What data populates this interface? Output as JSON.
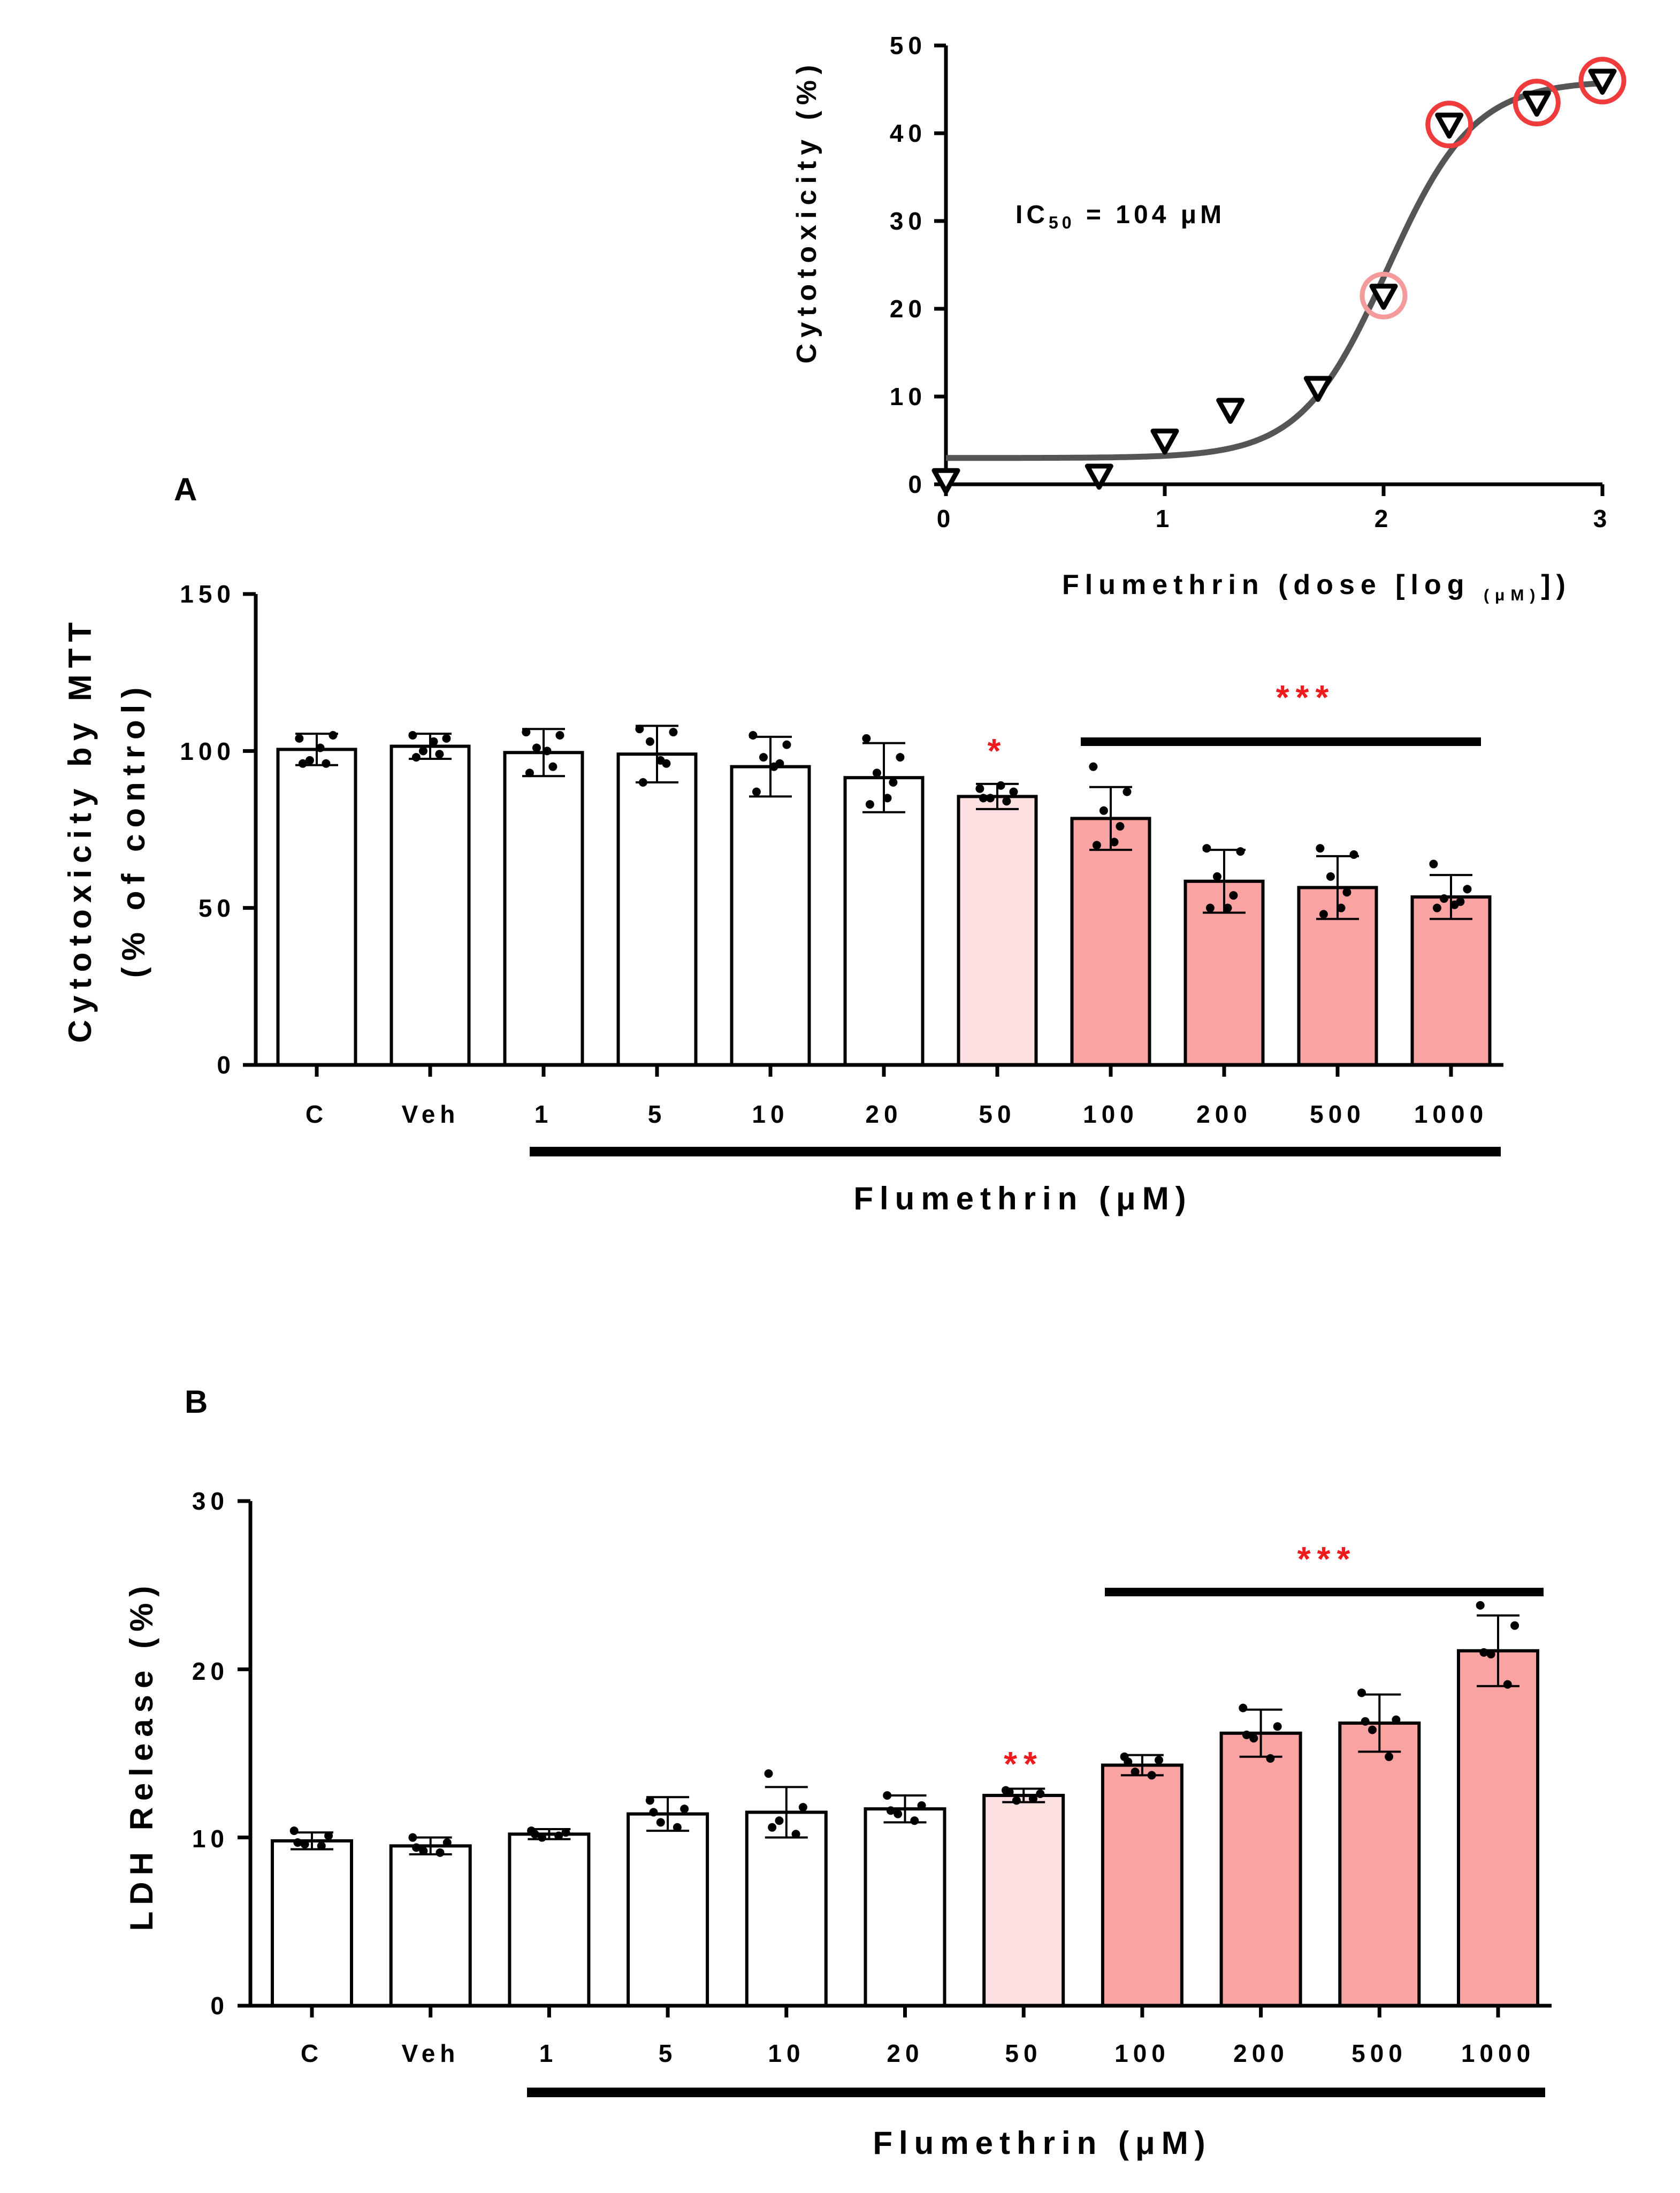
{
  "colors": {
    "ink": "#000000",
    "bar_white": "#ffffff",
    "bar_light": "#fde0e0",
    "bar_pink": "#f9a3a3",
    "highlight_circle": "#ef3b3b",
    "highlight_circle_faint": "#f49a9a",
    "curve": "#555555",
    "significance": "#ee1c1c"
  },
  "chart_data": [
    {
      "id": "inset",
      "type": "scatter",
      "ylabel": "Cytotoxicity (%)",
      "xlabel_prefix": "Flumethrin (dose [log ",
      "xlabel_sub": "(μM)",
      "xlabel_suffix": "])",
      "x_ticks": [
        "0",
        "1",
        "2",
        "3"
      ],
      "y_ticks": [
        "0",
        "10",
        "20",
        "30",
        "40",
        "50"
      ],
      "xlim": [
        0,
        3
      ],
      "ylim": [
        0,
        50
      ],
      "annotation_prefix": "IC",
      "annotation_sub": "50",
      "annotation_suffix": " = 104 μM",
      "x": [
        0,
        0.7,
        1,
        1.3,
        1.7,
        2,
        2.3,
        2.7,
        3
      ],
      "y": [
        0.5,
        1,
        5,
        8.5,
        11,
        21.5,
        41,
        43.5,
        46
      ],
      "highlighted_x": [
        2,
        2.3,
        2.7,
        3
      ],
      "fit": {
        "bottom": 3,
        "top": 46,
        "log_ic50": 2.017,
        "hill": 2.2
      }
    },
    {
      "id": "A",
      "type": "bar",
      "panel_label": "A",
      "ylabel_line1": "Cytotoxicity by MTT",
      "ylabel_line2": "(% of control)",
      "xlabel": "Flumethrin (μM)",
      "categories": [
        "C",
        "Veh",
        "1",
        "5",
        "10",
        "20",
        "50",
        "100",
        "200",
        "500",
        "1000"
      ],
      "values": [
        100.5,
        101.5,
        99.5,
        99,
        95,
        91.5,
        85.5,
        78.5,
        58.5,
        56.5,
        53.5
      ],
      "errors": [
        5,
        4,
        7.5,
        9,
        9.5,
        11,
        4,
        10,
        10,
        10,
        7
      ],
      "points": [
        [
          104,
          105,
          97,
          96,
          96,
          101
        ],
        [
          105,
          104,
          100,
          99,
          98,
          103
        ],
        [
          106,
          105,
          101,
          95,
          93,
          100
        ],
        [
          107,
          106,
          103,
          96,
          90,
          97
        ],
        [
          105,
          102,
          98,
          96,
          87,
          95
        ],
        [
          104,
          98,
          93,
          90,
          83,
          85
        ],
        [
          88,
          87,
          85,
          84,
          85,
          89
        ],
        [
          95,
          87,
          81,
          76,
          70,
          71
        ],
        [
          69,
          68,
          60,
          54,
          50,
          50
        ],
        [
          69,
          67,
          60,
          55,
          48,
          50
        ],
        [
          64,
          56,
          53,
          52,
          50,
          51
        ]
      ],
      "bar_style": [
        "white",
        "white",
        "white",
        "white",
        "white",
        "white",
        "light",
        "pink",
        "pink",
        "pink",
        "pink"
      ],
      "y_ticks": [
        "0",
        "50",
        "100",
        "150"
      ],
      "ylim": [
        0,
        150
      ],
      "significance": [
        {
          "label": "*",
          "category": "50"
        },
        {
          "label": "***",
          "from": "100",
          "to": "1000"
        }
      ]
    },
    {
      "id": "B",
      "type": "bar",
      "panel_label": "B",
      "ylabel": "LDH Release (%)",
      "xlabel": "Flumethrin (μM)",
      "categories": [
        "C",
        "Veh",
        "1",
        "5",
        "10",
        "20",
        "50",
        "100",
        "200",
        "500",
        "1000"
      ],
      "values": [
        9.8,
        9.5,
        10.2,
        11.4,
        11.5,
        11.7,
        12.5,
        14.3,
        16.2,
        16.8,
        21.1
      ],
      "errors": [
        0.5,
        0.5,
        0.3,
        1.0,
        1.5,
        0.8,
        0.4,
        0.6,
        1.4,
        1.7,
        2.1
      ],
      "points": [
        [
          10.4,
          10.1,
          9.6,
          9.5,
          9.7
        ],
        [
          10.0,
          9.7,
          9.2,
          9.1,
          9.4
        ],
        [
          10.4,
          10.3,
          10.0,
          10.1,
          10.2
        ],
        [
          12.2,
          11.7,
          10.9,
          10.6,
          11.5
        ],
        [
          13.8,
          11.8,
          11.0,
          10.2,
          10.6
        ],
        [
          12.5,
          11.9,
          11.4,
          11.0,
          11.6
        ],
        [
          12.8,
          12.6,
          12.2,
          12.3,
          12.7
        ],
        [
          14.8,
          14.6,
          13.9,
          13.7,
          14.5
        ],
        [
          17.7,
          16.6,
          15.9,
          14.7,
          16.1
        ],
        [
          18.6,
          17.0,
          16.4,
          14.8,
          16.9
        ],
        [
          23.8,
          22.6,
          20.9,
          19.1,
          21.0
        ]
      ],
      "bar_style": [
        "white",
        "white",
        "white",
        "white",
        "white",
        "white",
        "light",
        "pink",
        "pink",
        "pink",
        "pink"
      ],
      "y_ticks": [
        "0",
        "10",
        "20",
        "30"
      ],
      "ylim": [
        0,
        30
      ],
      "significance": [
        {
          "label": "**",
          "category": "50"
        },
        {
          "label": "***",
          "from": "100",
          "to": "1000"
        }
      ]
    }
  ]
}
